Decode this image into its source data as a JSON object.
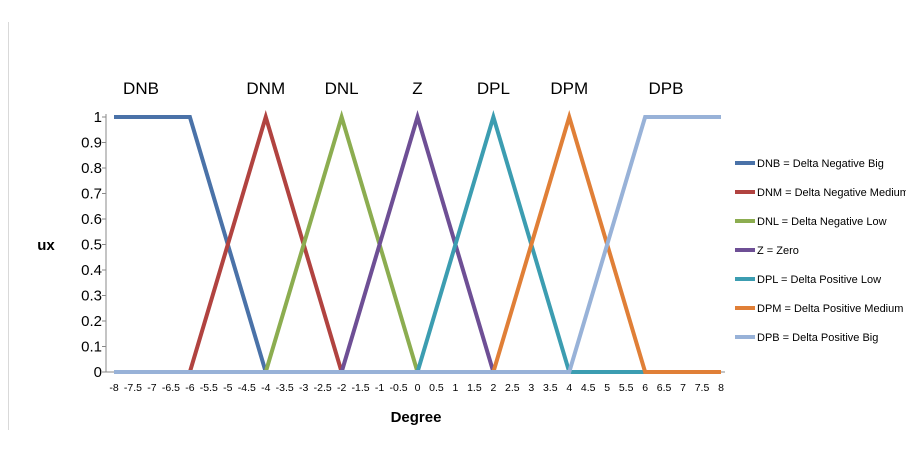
{
  "chart_data": {
    "type": "line",
    "title": "",
    "xlabel": "Degree",
    "ylabel": "ux",
    "xlim": [
      -8,
      8
    ],
    "ylim": [
      0,
      1
    ],
    "grid": false,
    "legend_position": "right",
    "x_ticks": [
      "-8",
      "-7.5",
      "-7",
      "-6.5",
      "-6",
      "-5.5",
      "-5",
      "-4.5",
      "-4",
      "-3.5",
      "-3",
      "-2.5",
      "-2",
      "-1.5",
      "-1",
      "-0.5",
      "0",
      "0.5",
      "1",
      "1.5",
      "2",
      "2.5",
      "3",
      "3.5",
      "4",
      "4.5",
      "5",
      "5.5",
      "6",
      "6.5",
      "7",
      "7.5",
      "8"
    ],
    "y_ticks": [
      "0",
      "0.1",
      "0.2",
      "0.3",
      "0.4",
      "0.5",
      "0.6",
      "0.7",
      "0.8",
      "0.9",
      "1"
    ],
    "series": [
      {
        "name": "DNB = Delta Negative Big",
        "label": "DNB",
        "color": "#4a72a8",
        "x": [
          -8,
          -6,
          -4,
          8
        ],
        "y": [
          1,
          1,
          0,
          0
        ]
      },
      {
        "name": "DNM = Delta Negative Medium",
        "label": "DNM",
        "color": "#b14340",
        "x": [
          -8,
          -6,
          -4,
          -2,
          8
        ],
        "y": [
          0,
          0,
          1,
          0,
          0
        ]
      },
      {
        "name": "DNL = Delta  Negative Low",
        "label": "DNL",
        "color": "#8cad50",
        "x": [
          -8,
          -4,
          -2,
          0,
          8
        ],
        "y": [
          0,
          0,
          1,
          0,
          0
        ]
      },
      {
        "name": "Z = Zero",
        "label": "Z",
        "color": "#6e4f95",
        "x": [
          -8,
          -2,
          0,
          2,
          8
        ],
        "y": [
          0,
          0,
          1,
          0,
          0
        ]
      },
      {
        "name": "DPL = Delta  Positive Low",
        "label": "DPL",
        "color": "#3c9db1",
        "x": [
          -8,
          0,
          2,
          4,
          8
        ],
        "y": [
          0,
          0,
          1,
          0,
          0
        ]
      },
      {
        "name": "DPM = Delta Positive Medium",
        "label": "DPM",
        "color": "#e07f37",
        "x": [
          -8,
          2,
          4,
          6,
          8
        ],
        "y": [
          0,
          0,
          1,
          0,
          0
        ]
      },
      {
        "name": "DPB = Delta Positive Big",
        "label": "DPB",
        "color": "#98b2d8",
        "x": [
          -8,
          4,
          6,
          8
        ],
        "y": [
          0,
          0,
          1,
          1
        ]
      }
    ]
  }
}
